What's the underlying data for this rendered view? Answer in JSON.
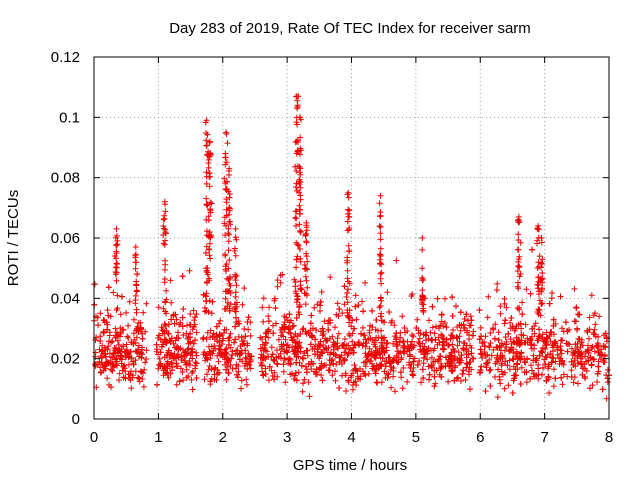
{
  "chart_data": {
    "type": "scatter",
    "title": "Day 283 of 2019, Rate Of TEC Index for receiver sarm",
    "xlabel": "GPS time / hours",
    "ylabel": "ROTI / TECUs",
    "xlim": [
      0,
      8
    ],
    "ylim": [
      0,
      0.12
    ],
    "xticks": [
      0,
      1,
      2,
      3,
      4,
      5,
      6,
      7,
      8
    ],
    "xtick_labels": [
      "0",
      "1",
      "2",
      "3",
      "4",
      "5",
      "6",
      "7",
      "8"
    ],
    "yticks": [
      0,
      0.02,
      0.04,
      0.06,
      0.08,
      0.1,
      0.12
    ],
    "ytick_labels": [
      "0",
      "0.02",
      "0.04",
      "0.06",
      "0.08",
      "0.1",
      "0.12"
    ],
    "grid": true,
    "marker": "+",
    "color": "#ee0000",
    "series": [
      {
        "name": "ROTI",
        "baseline_approx": 0.022,
        "spikes": [
          {
            "x": 0.35,
            "y": 0.063
          },
          {
            "x": 0.65,
            "y": 0.057
          },
          {
            "x": 1.1,
            "y": 0.072
          },
          {
            "x": 1.75,
            "y": 0.099
          },
          {
            "x": 1.8,
            "y": 0.092
          },
          {
            "x": 2.05,
            "y": 0.095
          },
          {
            "x": 2.1,
            "y": 0.083
          },
          {
            "x": 2.2,
            "y": 0.063
          },
          {
            "x": 3.15,
            "y": 0.107
          },
          {
            "x": 3.2,
            "y": 0.1
          },
          {
            "x": 3.3,
            "y": 0.065
          },
          {
            "x": 3.95,
            "y": 0.075
          },
          {
            "x": 4.45,
            "y": 0.074
          },
          {
            "x": 5.1,
            "y": 0.06
          },
          {
            "x": 6.6,
            "y": 0.067
          },
          {
            "x": 6.9,
            "y": 0.064
          },
          {
            "x": 6.95,
            "y": 0.06
          }
        ]
      }
    ]
  }
}
